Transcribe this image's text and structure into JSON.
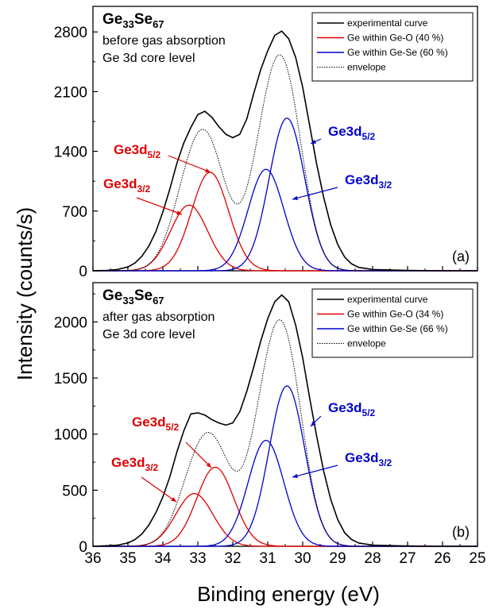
{
  "chart_data": [
    {
      "type": "line",
      "panel_tag": "(a)",
      "compound": {
        "main": "Ge",
        "sub1": "33",
        "mid": "Se",
        "sub2": "67"
      },
      "annotation_lines": [
        "before gas absorption",
        "Ge 3d core level"
      ],
      "xlim": [
        36,
        25
      ],
      "ylim": [
        0,
        3100
      ],
      "yticks": [
        0,
        700,
        1400,
        2100,
        2800
      ],
      "legend": [
        {
          "label": "experimental curve",
          "color": "#000000",
          "style": "solid"
        },
        {
          "label": "Ge within Ge-O (40 %)",
          "color": "#e00000",
          "style": "solid"
        },
        {
          "label": "Ge within Ge-Se (60 %)",
          "color": "#0000cc",
          "style": "solid"
        },
        {
          "label": "envelope",
          "color": "#000000",
          "style": "dotted"
        }
      ],
      "peaks": [
        {
          "label": "Ge3d",
          "sub": "3/2",
          "color": "#e00000",
          "center": 33.25,
          "height": 770,
          "fwhm": 1.25
        },
        {
          "label": "Ge3d",
          "sub": "5/2",
          "color": "#e00000",
          "center": 32.65,
          "height": 1155,
          "fwhm": 1.25
        },
        {
          "label": "Ge3d",
          "sub": "3/2",
          "color": "#0000cc",
          "center": 31.05,
          "height": 1190,
          "fwhm": 1.2
        },
        {
          "label": "Ge3d",
          "sub": "5/2",
          "color": "#0000cc",
          "center": 30.45,
          "height": 1790,
          "fwhm": 1.2
        }
      ],
      "experimental": {
        "x": [
          36,
          35.6,
          35.3,
          35.0,
          34.8,
          34.6,
          34.4,
          34.2,
          34.0,
          33.8,
          33.6,
          33.4,
          33.2,
          33.0,
          32.8,
          32.6,
          32.4,
          32.2,
          32.0,
          31.8,
          31.6,
          31.4,
          31.2,
          31.0,
          30.8,
          30.6,
          30.4,
          30.2,
          30.0,
          29.8,
          29.6,
          29.4,
          29.2,
          29.0,
          28.8,
          28.6,
          28.4,
          28.0,
          27.0,
          26.0,
          25.0
        ],
        "y": [
          0,
          5,
          15,
          45,
          90,
          170,
          290,
          460,
          690,
          960,
          1260,
          1500,
          1680,
          1830,
          1870,
          1800,
          1690,
          1600,
          1560,
          1600,
          1780,
          2080,
          2360,
          2580,
          2760,
          2810,
          2720,
          2500,
          2150,
          1700,
          1250,
          860,
          540,
          310,
          160,
          80,
          40,
          15,
          5,
          0,
          0
        ]
      }
    },
    {
      "type": "line",
      "panel_tag": "(b)",
      "compound": {
        "main": "Ge",
        "sub1": "33",
        "mid": "Se",
        "sub2": "67"
      },
      "annotation_lines": [
        "after gas absorption",
        "Ge 3d core level"
      ],
      "xlim": [
        36,
        25
      ],
      "ylim": [
        0,
        2350
      ],
      "yticks": [
        0,
        500,
        1000,
        1500,
        2000
      ],
      "legend": [
        {
          "label": "experimental curve",
          "color": "#000000",
          "style": "solid"
        },
        {
          "label": "Ge within Ge-O (34 %)",
          "color": "#e00000",
          "style": "solid"
        },
        {
          "label": "Ge within Ge-Se (66 %)",
          "color": "#0000cc",
          "style": "solid"
        },
        {
          "label": "envelope",
          "color": "#000000",
          "style": "dotted"
        }
      ],
      "peaks": [
        {
          "label": "Ge3d",
          "sub": "3/2",
          "color": "#e00000",
          "center": 33.1,
          "height": 470,
          "fwhm": 1.25
        },
        {
          "label": "Ge3d",
          "sub": "5/2",
          "color": "#e00000",
          "center": 32.5,
          "height": 705,
          "fwhm": 1.25
        },
        {
          "label": "Ge3d",
          "sub": "3/2",
          "color": "#0000cc",
          "center": 31.05,
          "height": 945,
          "fwhm": 1.2
        },
        {
          "label": "Ge3d",
          "sub": "5/2",
          "color": "#0000cc",
          "center": 30.45,
          "height": 1430,
          "fwhm": 1.2
        }
      ],
      "experimental": {
        "x": [
          36,
          35.6,
          35.3,
          35.0,
          34.8,
          34.6,
          34.4,
          34.2,
          34.0,
          33.8,
          33.6,
          33.4,
          33.2,
          33.0,
          32.8,
          32.6,
          32.4,
          32.2,
          32.0,
          31.8,
          31.6,
          31.4,
          31.2,
          31.0,
          30.8,
          30.6,
          30.4,
          30.2,
          30.0,
          29.8,
          29.6,
          29.4,
          29.2,
          29.0,
          28.8,
          28.6,
          28.4,
          28.0,
          27.0,
          26.0,
          25.0
        ],
        "y": [
          0,
          5,
          10,
          30,
          60,
          110,
          190,
          300,
          440,
          620,
          840,
          1030,
          1180,
          1190,
          1170,
          1130,
          1100,
          1080,
          1100,
          1200,
          1380,
          1600,
          1830,
          2030,
          2180,
          2240,
          2180,
          1970,
          1680,
          1320,
          980,
          670,
          420,
          240,
          120,
          60,
          30,
          10,
          3,
          0,
          0
        ]
      }
    }
  ],
  "shared": {
    "xlabel": "Binding energy (eV)",
    "ylabel": "Intensity (counts/s)",
    "xticks": [
      36,
      35,
      34,
      33,
      32,
      31,
      30,
      29,
      28,
      27,
      26,
      25
    ]
  }
}
